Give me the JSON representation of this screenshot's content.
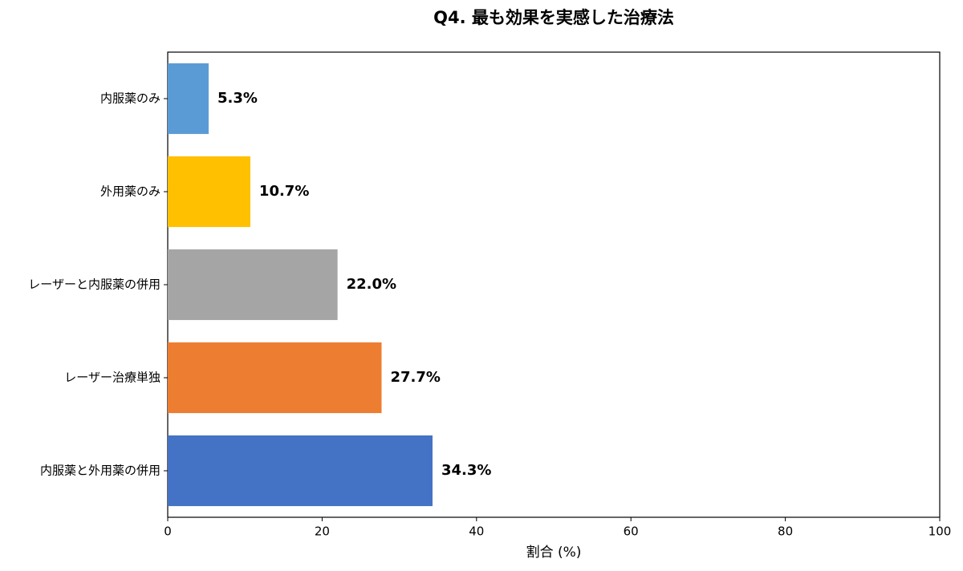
{
  "chart_data": {
    "type": "barh",
    "title": "Q4. 最も効果を実感した治療法",
    "categories": [
      "内服薬のみ",
      "外用薬のみ",
      "レーザーと内服薬の併用",
      "レーザー治療単独",
      "内服薬と外用薬の併用"
    ],
    "values": [
      5.3,
      10.7,
      22.0,
      27.7,
      34.3
    ],
    "value_labels": [
      "5.3%",
      "10.7%",
      "22.0%",
      "27.7%",
      "34.3%"
    ],
    "colors": [
      "#5b9bd5",
      "#ffc000",
      "#a5a5a5",
      "#ed7d31",
      "#4472c4"
    ],
    "xlabel": "割合 (%)",
    "xlim": [
      0,
      100
    ],
    "xticks": [
      0,
      20,
      40,
      60,
      80,
      100
    ],
    "grid": false
  }
}
